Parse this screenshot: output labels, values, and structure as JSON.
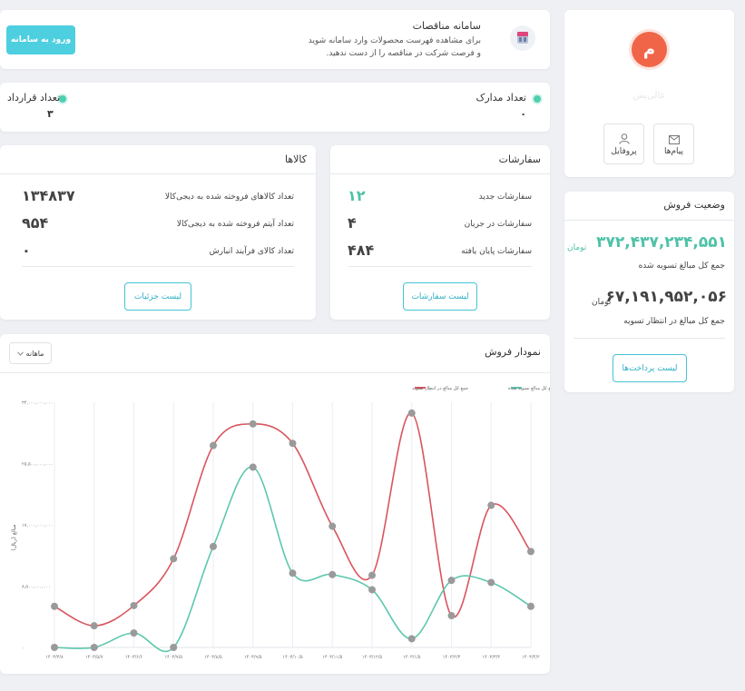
{
  "tender": {
    "title": "سامانه مناقصات",
    "line1": "برای مشاهده فهرست محصولات وارد سامانه شوید",
    "line2": "و فرصت شرکت در مناقصه را از دست ندهید.",
    "enter_button": "ورود به سامانه"
  },
  "counts": {
    "docs_label": "تعداد مدارک",
    "docs_value": "۰",
    "contracts_label": "تعداد قرارداد",
    "contracts_value": "۳"
  },
  "profile": {
    "avatar_letter": "م",
    "name": "عالی‌پس",
    "messages_label": "پیام‌ها",
    "profile_label": "پروفایل"
  },
  "sales_status": {
    "title": "وضعیت فروش",
    "settled_amount": "۳۷۲,۴۳۷,۲۳۴,۵۵۱",
    "settled_unit": "تومان",
    "settled_label": "جمع کل مبالغ تسویه شده",
    "pending_amount": "۶۷,۱۹۱,۹۵۲,۰۵۶",
    "pending_unit": "تومان",
    "pending_label": "جمع کل مبالغ در انتظار تسویه",
    "payments_button": "لیست پرداخت‌ها"
  },
  "orders": {
    "title": "سفارشات",
    "new_label": "سفارشات جدید",
    "new_value": "۱۲",
    "in_progress_label": "سفارشات در جریان",
    "in_progress_value": "۴",
    "done_label": "سفارشات پایان یافته",
    "done_value": "۴۸۴",
    "list_button": "لیست سفارشات"
  },
  "goods": {
    "title": "کالاها",
    "sold_goods_label": "تعداد کالاهای فروخته شده به دیجی‌کالا",
    "sold_goods_value": "۱۳۴۸۳۷",
    "sold_items_label": "تعداد آیتم فروخته شده به دیجی‌کالا",
    "sold_items_value": "۹۵۴",
    "storage_label": "تعداد کالای فرآیند انبارش",
    "storage_value": "۰",
    "details_button": "لیست جزئیات"
  },
  "sales_chart": {
    "title": "نمودار فروش",
    "period_select": "ماهانه",
    "ylabel": "مبالغ (ریال)"
  },
  "colors": {
    "settled": "#5cc7ae",
    "pending": "#d9555e",
    "accent": "#45c4d6",
    "avatar": "#f06548"
  },
  "chart_data": {
    "type": "line",
    "x": [
      "۱۴۰۳/۳/۸",
      "۱۴۰۳/۵/۷",
      "۱۴۰۳/۶/۶",
      "۱۴۰۳/۷/۵",
      "۱۴۰۳/۸/۵",
      "۱۴۰۳/۹/۵",
      "۱۴۰۳/۱۰/۵",
      "۱۴۰۳/۱۱/۵",
      "۱۴۰۳/۱۲/۵",
      "۱۴۰۳/۱/۵",
      "۱۴۰۳/۲/۳",
      "۱۴۰۳/۳/۳",
      "۱۴۰۳/۴/۲"
    ],
    "series": [
      {
        "name": "جمع کل مبالغ تسویه شده",
        "color": "#5cc7ae",
        "values": [
          0,
          0,
          2000000000,
          0,
          14000000000,
          25000000000,
          10300000000,
          10100000000,
          8000000000,
          1200000000,
          9300000000,
          9000000000,
          5700000000
        ]
      },
      {
        "name": "جمع کل مبالغ در انتظار تسویه",
        "color": "#d9555e",
        "values": [
          5700000000,
          3000000000,
          5800000000,
          12300000000,
          28000000000,
          31000000000,
          28300000000,
          16800000000,
          10000000000,
          32500000000,
          4400000000,
          19700000000,
          13300000000
        ]
      }
    ],
    "yticks": [
      "۰",
      "۸,۵۰۰,۰۰۰,۰۰۰",
      "۱۷,۰۰۰,۰۰۰,۰۰۰",
      "۲۵,۵۰۰,۰۰۰,۰۰۰",
      "۳۴,۰۰۰,۰۰۰,۰۰۰"
    ],
    "ylim": [
      0,
      34000000000
    ],
    "ylabel": "مبالغ (ریال)",
    "legend": "top-right",
    "grid": "vertical"
  }
}
